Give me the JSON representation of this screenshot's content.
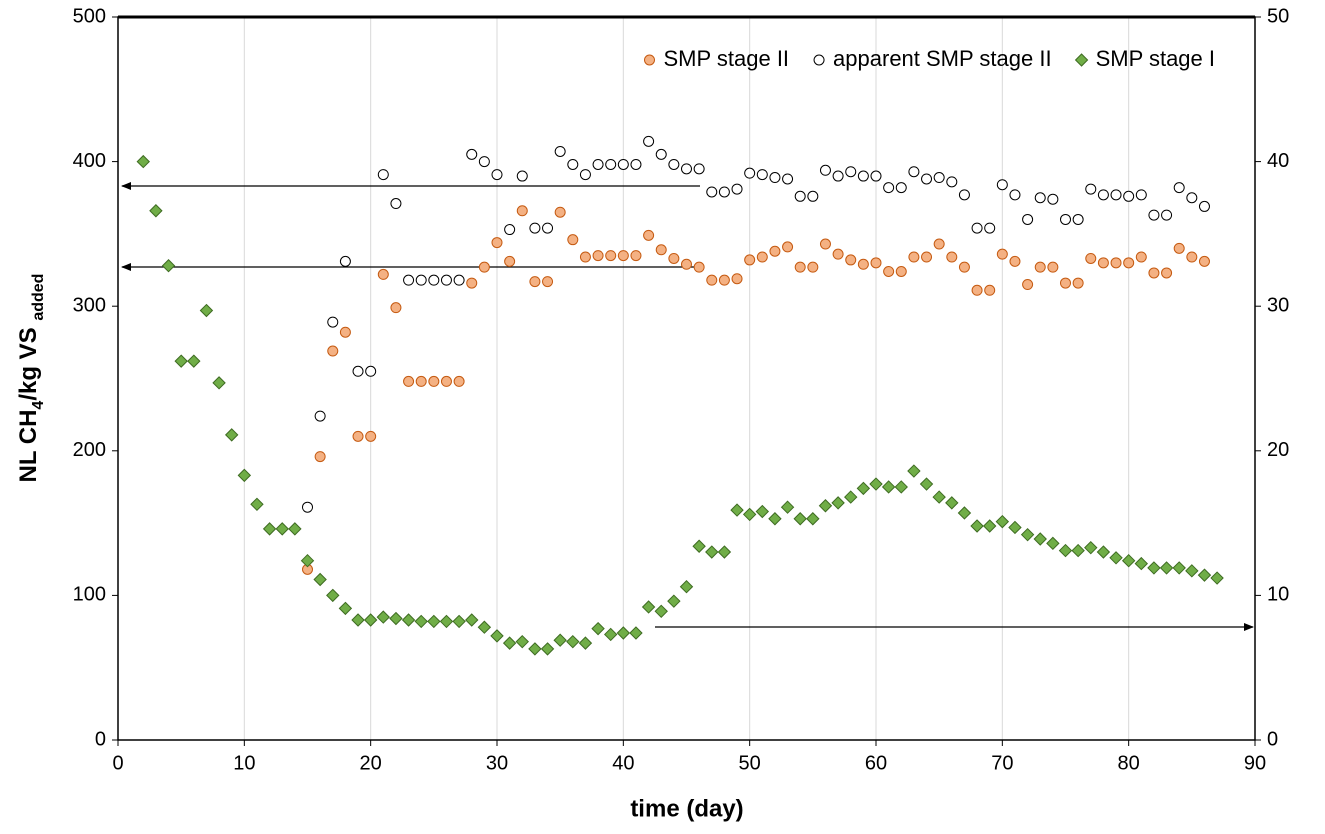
{
  "chart_data": {
    "type": "scatter",
    "x_label": "time (day)",
    "y_label": [
      "NL CH",
      "4",
      "/kg VS ",
      "added"
    ],
    "xlim": [
      0,
      90
    ],
    "xticks": [
      0,
      10,
      20,
      30,
      40,
      50,
      60,
      70,
      80,
      90
    ],
    "ylim": [
      0,
      500
    ],
    "yticks": [
      0,
      100,
      200,
      300,
      400,
      500
    ],
    "y2lim": [
      0,
      50
    ],
    "y2ticks": [
      0,
      10,
      20,
      30,
      40,
      50
    ],
    "grid": "x",
    "legend": "upper right",
    "series": [
      {
        "name": "SMP stage II",
        "marker": "circle",
        "color": "#f4b183",
        "edgecolor": "#c55a11",
        "x": [
          15,
          16,
          17,
          18,
          19,
          20,
          21,
          22,
          23,
          24,
          25,
          26,
          27,
          28,
          29,
          30,
          31,
          32,
          33,
          34,
          35,
          36,
          37,
          38,
          39,
          40,
          41,
          42,
          43,
          44,
          45,
          46,
          47,
          48,
          49,
          50,
          51,
          52,
          53,
          54,
          55,
          56,
          57,
          58,
          59,
          60,
          61,
          62,
          63,
          64,
          65,
          66,
          67,
          68,
          69,
          70,
          71,
          72,
          73,
          74,
          75,
          76,
          77,
          78,
          79,
          80,
          81,
          82,
          83,
          84,
          85,
          86
        ],
        "values": [
          118,
          196,
          269,
          282,
          210,
          210,
          322,
          299,
          248,
          248,
          248,
          248,
          248,
          316,
          327,
          344,
          331,
          366,
          317,
          317,
          365,
          346,
          334,
          335,
          335,
          335,
          335,
          349,
          339,
          333,
          329,
          327,
          318,
          318,
          319,
          332,
          334,
          338,
          341,
          327,
          327,
          343,
          336,
          332,
          329,
          330,
          324,
          324,
          334,
          334,
          343,
          334,
          327,
          311,
          311,
          336,
          331,
          315,
          327,
          327,
          316,
          316,
          333,
          330,
          330,
          330,
          334,
          323,
          323,
          340,
          334,
          331
        ]
      },
      {
        "name": "apparent SMP stage II",
        "marker": "circle",
        "color": "#ffffff",
        "edgecolor": "#000000",
        "x": [
          15,
          16,
          17,
          18,
          19,
          20,
          21,
          22,
          23,
          24,
          25,
          26,
          27,
          28,
          29,
          30,
          31,
          32,
          33,
          34,
          35,
          36,
          37,
          38,
          39,
          40,
          41,
          42,
          43,
          44,
          45,
          46,
          47,
          48,
          49,
          50,
          51,
          52,
          53,
          54,
          55,
          56,
          57,
          58,
          59,
          60,
          61,
          62,
          63,
          64,
          65,
          66,
          67,
          68,
          69,
          70,
          71,
          72,
          73,
          74,
          75,
          76,
          77,
          78,
          79,
          80,
          81,
          82,
          83,
          84,
          85,
          86
        ],
        "values": [
          161,
          224,
          289,
          331,
          255,
          255,
          391,
          371,
          318,
          318,
          318,
          318,
          318,
          405,
          400,
          391,
          353,
          390,
          354,
          354,
          407,
          398,
          391,
          398,
          398,
          398,
          398,
          414,
          405,
          398,
          395,
          395,
          379,
          379,
          381,
          392,
          391,
          389,
          388,
          376,
          376,
          394,
          390,
          393,
          390,
          390,
          382,
          382,
          393,
          388,
          389,
          386,
          377,
          354,
          354,
          384,
          377,
          360,
          375,
          374,
          360,
          360,
          381,
          377,
          377,
          376,
          377,
          363,
          363,
          382,
          375,
          369
        ]
      },
      {
        "name": "SMP stage I",
        "marker": "diamond",
        "color": "#70ad47",
        "edgecolor": "#3e6b22",
        "x": [
          2,
          3,
          4,
          5,
          6,
          7,
          8,
          9,
          10,
          11,
          12,
          13,
          14,
          15,
          16,
          17,
          18,
          19,
          20,
          21,
          22,
          23,
          24,
          25,
          26,
          27,
          28,
          29,
          30,
          31,
          32,
          33,
          34,
          35,
          36,
          37,
          38,
          39,
          40,
          41,
          42,
          43,
          44,
          45,
          46,
          47,
          48,
          49,
          50,
          51,
          52,
          53,
          54,
          55,
          56,
          57,
          58,
          59,
          60,
          61,
          62,
          63,
          64,
          65,
          66,
          67,
          68,
          69,
          70,
          71,
          72,
          73,
          74,
          75,
          76,
          77,
          78,
          79,
          80,
          81,
          82,
          83,
          84,
          85,
          86,
          87
        ],
        "values": [
          400,
          366,
          328,
          262,
          262,
          297,
          247,
          211,
          183,
          163,
          146,
          146,
          146,
          124,
          111,
          100,
          91,
          83,
          83,
          85,
          84,
          83,
          82,
          82,
          82,
          82,
          83,
          78,
          72,
          67,
          68,
          63,
          63,
          69,
          68,
          67,
          77,
          73,
          74,
          74,
          92,
          89,
          96,
          106,
          134,
          130,
          130,
          159,
          156,
          158,
          153,
          161,
          153,
          153,
          162,
          164,
          168,
          174,
          177,
          175,
          175,
          186,
          177,
          168,
          164,
          157,
          148,
          148,
          151,
          147,
          142,
          139,
          136,
          131,
          131,
          133,
          130,
          126,
          124,
          122,
          119,
          119,
          119,
          117,
          114,
          112
        ]
      }
    ]
  }
}
